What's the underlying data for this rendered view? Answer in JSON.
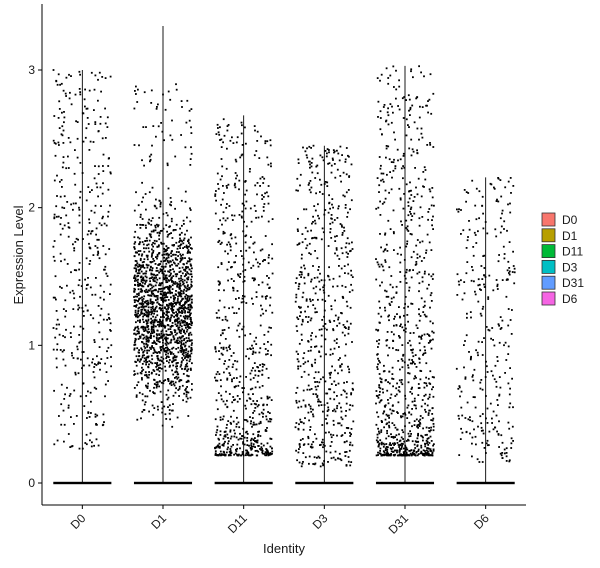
{
  "chart_data": {
    "type": "scatter",
    "subtype": "violin-jitter",
    "title": "",
    "xlabel": "Identity",
    "ylabel": "Expression Level",
    "categories": [
      "D0",
      "D1",
      "D11",
      "D3",
      "D31",
      "D6"
    ],
    "ylim": [
      -0.18,
      3.45
    ],
    "yticks": [
      0,
      1,
      2,
      3
    ],
    "grid": false,
    "legend": {
      "placement": "right",
      "entries": [
        {
          "name": "D0",
          "color": "#F8766D"
        },
        {
          "name": "D1",
          "color": "#B79F00"
        },
        {
          "name": "D11",
          "color": "#00BA38"
        },
        {
          "name": "D3",
          "color": "#00BFC4"
        },
        {
          "name": "D31",
          "color": "#619CFF"
        },
        {
          "name": "D6",
          "color": "#F564E3"
        }
      ]
    },
    "series": [
      {
        "category": "D0",
        "max": 3.0,
        "nonzero_points": 420,
        "range": [
          0.25,
          3.0
        ],
        "spread": "uniform"
      },
      {
        "category": "D1",
        "max": 3.32,
        "nonzero_points": 1700,
        "range": [
          0.25,
          2.9
        ],
        "spread": "dense-mid"
      },
      {
        "category": "D11",
        "max": 2.67,
        "nonzero_points": 700,
        "range": [
          0.2,
          2.65
        ],
        "spread": "low"
      },
      {
        "category": "D3",
        "max": 2.45,
        "nonzero_points": 600,
        "range": [
          0.12,
          2.45
        ],
        "spread": "uniform"
      },
      {
        "category": "D31",
        "max": 3.03,
        "nonzero_points": 900,
        "range": [
          0.2,
          3.03
        ],
        "spread": "low"
      },
      {
        "category": "D6",
        "max": 2.22,
        "nonzero_points": 300,
        "range": [
          0.15,
          2.22
        ],
        "spread": "uniform"
      }
    ]
  }
}
